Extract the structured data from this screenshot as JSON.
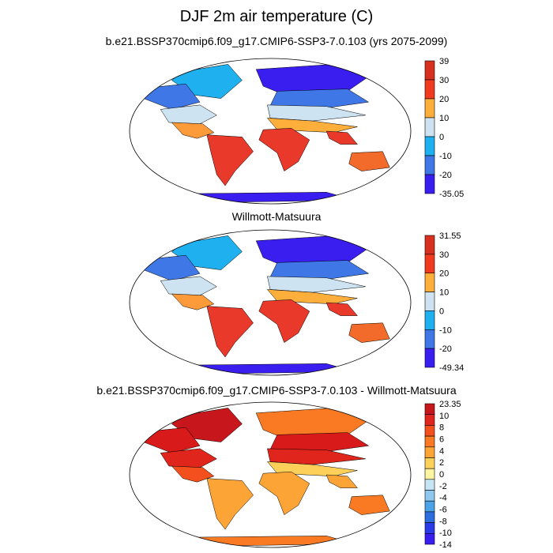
{
  "figure": {
    "title": "DJF 2m air temperature (C)"
  },
  "panels": [
    {
      "title": "b.e21.BSSP370cmip6.f09_g17.CMIP6-SSP3-7.0.103 (yrs 2075-2099)",
      "colorbar": {
        "labels": [
          "39",
          "30",
          "20",
          "10",
          "0",
          "-10",
          "-20",
          "-35.05"
        ],
        "colors": [
          "#d7301f",
          "#f03b20",
          "#fdae3b",
          "#cde3f2",
          "#1fb0f0",
          "#3f78e6",
          "#3a1ef0"
        ]
      },
      "palette": {
        "tropics": "#e8392a",
        "subtropics": "#f26b2a",
        "warm": "#fd9a3a",
        "mild": "#fdae3b",
        "cool": "#cde3f2",
        "cold": "#1fb0f0",
        "verycold": "#3f78e6",
        "polar": "#3a1ef0"
      }
    },
    {
      "title": "Willmott-Matsuura",
      "colorbar": {
        "labels": [
          "31.55",
          "30",
          "20",
          "10",
          "0",
          "-10",
          "-20",
          "-49.34"
        ],
        "colors": [
          "#d7301f",
          "#f03b20",
          "#fdae3b",
          "#cde3f2",
          "#1fb0f0",
          "#3f78e6",
          "#3a1ef0"
        ]
      },
      "palette": {
        "tropics": "#e8392a",
        "subtropics": "#f26b2a",
        "warm": "#fd9a3a",
        "mild": "#fdae3b",
        "cool": "#cde3f2",
        "cold": "#1fb0f0",
        "verycold": "#3f78e6",
        "polar": "#3a1ef0"
      }
    },
    {
      "title": "b.e21.BSSP370cmip6.f09_g17.CMIP6-SSP3-7.0.103 - Willmott-Matsuura",
      "colorbar": {
        "labels": [
          "23.35",
          "10",
          "8",
          "6",
          "4",
          "2",
          "0",
          "-2",
          "-4",
          "-6",
          "-8",
          "-10",
          "-14"
        ],
        "colors": [
          "#c8161d",
          "#e0261c",
          "#f4501d",
          "#f97a22",
          "#fca435",
          "#fdd05a",
          "#fdf3a0",
          "#c7e4f5",
          "#8fc8ee",
          "#4aa3e6",
          "#2c6ee0",
          "#2a3ce8",
          "#3a1ef0"
        ]
      },
      "palette": {
        "tropics": "#fca435",
        "subtropics": "#f97a22",
        "warm": "#f4501d",
        "mild": "#fdd05a",
        "cool": "#e0261c",
        "cold": "#c8161d",
        "verycold": "#d81a1a",
        "polar": "#f97a22"
      }
    }
  ]
}
